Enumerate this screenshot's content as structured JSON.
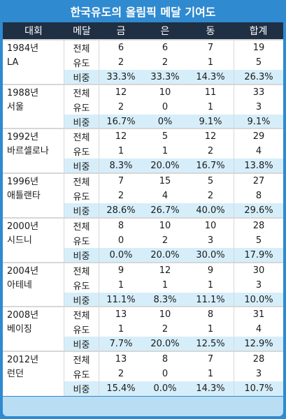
{
  "title": "한국유도의 올림픽 메달 기여도",
  "headers": {
    "games": "대회",
    "medal": "메달",
    "gold": "금",
    "silver": "은",
    "bronze": "동",
    "total": "합계"
  },
  "groups": [
    {
      "year": "1984년",
      "city": "LA",
      "rows": [
        {
          "label": "전체",
          "gold": "6",
          "silver": "6",
          "bronze": "7",
          "total": "19"
        },
        {
          "label": "유도",
          "gold": "2",
          "silver": "2",
          "bronze": "1",
          "total": "5"
        },
        {
          "label": "비중",
          "gold": "33.3%",
          "silver": "33.3%",
          "bronze": "14.3%",
          "total": "26.3%"
        }
      ]
    },
    {
      "year": "1988년",
      "city": "서울",
      "rows": [
        {
          "label": "전체",
          "gold": "12",
          "silver": "10",
          "bronze": "11",
          "total": "33"
        },
        {
          "label": "유도",
          "gold": "2",
          "silver": "0",
          "bronze": "1",
          "total": "3"
        },
        {
          "label": "비중",
          "gold": "16.7%",
          "silver": "0%",
          "bronze": "9.1%",
          "total": "9.1%"
        }
      ]
    },
    {
      "year": "1992년",
      "city": "바르셀로나",
      "rows": [
        {
          "label": "전체",
          "gold": "12",
          "silver": "5",
          "bronze": "12",
          "total": "29"
        },
        {
          "label": "유도",
          "gold": "1",
          "silver": "1",
          "bronze": "2",
          "total": "4"
        },
        {
          "label": "비중",
          "gold": "8.3%",
          "silver": "20.0%",
          "bronze": "16.7%",
          "total": "13.8%"
        }
      ]
    },
    {
      "year": "1996년",
      "city": "애틀랜타",
      "rows": [
        {
          "label": "전체",
          "gold": "7",
          "silver": "15",
          "bronze": "5",
          "total": "27"
        },
        {
          "label": "유도",
          "gold": "2",
          "silver": "4",
          "bronze": "2",
          "total": "8"
        },
        {
          "label": "비중",
          "gold": "28.6%",
          "silver": "26.7%",
          "bronze": "40.0%",
          "total": "29.6%"
        }
      ]
    },
    {
      "year": "2000년",
      "city": "시드니",
      "rows": [
        {
          "label": "전체",
          "gold": "8",
          "silver": "10",
          "bronze": "10",
          "total": "28"
        },
        {
          "label": "유도",
          "gold": "0",
          "silver": "2",
          "bronze": "3",
          "total": "5"
        },
        {
          "label": "비중",
          "gold": "0.0%",
          "silver": "20.0%",
          "bronze": "30.0%",
          "total": "17.9%"
        }
      ]
    },
    {
      "year": "2004년",
      "city": "아테네",
      "rows": [
        {
          "label": "전체",
          "gold": "9",
          "silver": "12",
          "bronze": "9",
          "total": "30"
        },
        {
          "label": "유도",
          "gold": "1",
          "silver": "1",
          "bronze": "1",
          "total": "3"
        },
        {
          "label": "비중",
          "gold": "11.1%",
          "silver": "8.3%",
          "bronze": "11.1%",
          "total": "10.0%"
        }
      ]
    },
    {
      "year": "2008년",
      "city": "베이징",
      "rows": [
        {
          "label": "전체",
          "gold": "13",
          "silver": "10",
          "bronze": "8",
          "total": "31"
        },
        {
          "label": "유도",
          "gold": "1",
          "silver": "2",
          "bronze": "1",
          "total": "4"
        },
        {
          "label": "비중",
          "gold": "7.7%",
          "silver": "20.0%",
          "bronze": "12.5%",
          "total": "12.9%"
        }
      ]
    },
    {
      "year": "2012년",
      "city": "런던",
      "rows": [
        {
          "label": "전체",
          "gold": "13",
          "silver": "8",
          "bronze": "7",
          "total": "28"
        },
        {
          "label": "유도",
          "gold": "2",
          "silver": "0",
          "bronze": "1",
          "total": "3"
        },
        {
          "label": "비중",
          "gold": "15.4%",
          "silver": "0.0%",
          "bronze": "14.3%",
          "total": "10.7%"
        }
      ]
    }
  ],
  "colors": {
    "frame": "#2f8ad0",
    "header": "#1f2f44",
    "share_row": "#d6eef9",
    "bottom_band": "#b9ddf3"
  }
}
